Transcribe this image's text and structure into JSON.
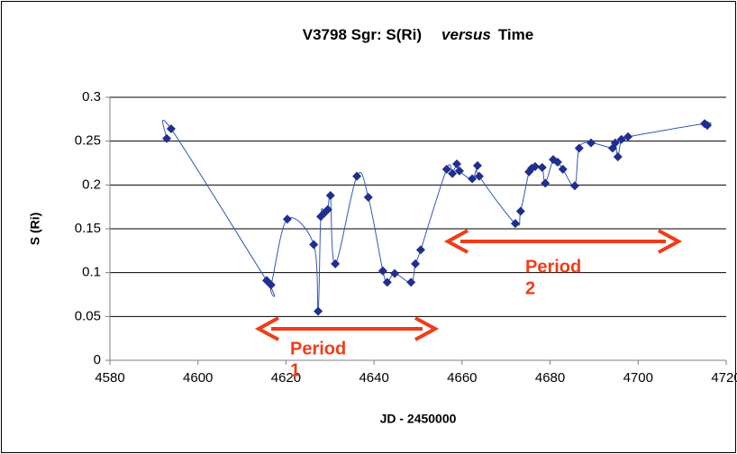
{
  "chart_data": {
    "type": "scatter",
    "title_parts": [
      "V3798 Sgr: S(Ri)",
      "versus",
      "Time"
    ],
    "x_label": "JD - 2450000",
    "y_label": "S (Ri)",
    "xlim": [
      4580,
      4720
    ],
    "xticks": [
      4580,
      4600,
      4620,
      4640,
      4660,
      4680,
      4700,
      4720
    ],
    "ylim": [
      0,
      0.3
    ],
    "yticks": [
      0,
      0.05,
      0.1,
      0.15,
      0.2,
      0.25,
      0.3
    ],
    "grid": true,
    "series": [
      {
        "color": "#1f2f8f",
        "line_color": "#3458b8",
        "x": [
          4592.9,
          4593.9,
          4615.6,
          4616.6,
          4620.3,
          4626.3,
          4627.3,
          4627.9,
          4628.7,
          4629.5,
          4630.1,
          4631.2,
          4636.1,
          4638.7,
          4642.0,
          4643.0,
          4644.7,
          4648.4,
          4649.4,
          4650.6,
          4656.5,
          4657.8,
          4658.8,
          4659.4,
          4662.3,
          4663.5,
          4663.9,
          4672.1,
          4673.3,
          4675.2,
          4675.8,
          4676.6,
          4678.2,
          4678.9,
          4680.7,
          4681.7,
          4682.9,
          4685.6,
          4686.6,
          4689.3,
          4694.2,
          4694.8,
          4695.4,
          4696.2,
          4697.7,
          4715.1,
          4715.7
        ],
        "values": [
          0.253,
          0.264,
          0.091,
          0.086,
          0.161,
          0.132,
          0.056,
          0.164,
          0.168,
          0.172,
          0.188,
          0.11,
          0.21,
          0.186,
          0.102,
          0.089,
          0.099,
          0.089,
          0.11,
          0.126,
          0.218,
          0.213,
          0.224,
          0.216,
          0.207,
          0.222,
          0.21,
          0.156,
          0.17,
          0.215,
          0.219,
          0.221,
          0.22,
          0.202,
          0.229,
          0.226,
          0.218,
          0.199,
          0.242,
          0.248,
          0.242,
          0.248,
          0.232,
          0.252,
          0.255,
          0.27,
          0.268
        ]
      }
    ],
    "annotations": [
      {
        "lines": [
          "Period",
          "1"
        ],
        "color": "#f03c18"
      },
      {
        "lines": [
          "Period",
          "2"
        ],
        "color": "#f03c18"
      }
    ]
  }
}
